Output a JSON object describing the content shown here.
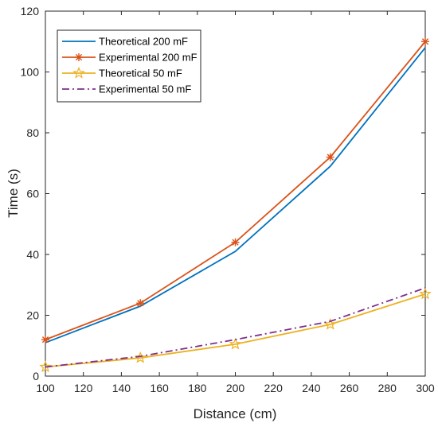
{
  "chart_data": {
    "type": "line",
    "xlabel": "Distance (cm)",
    "ylabel": "Time (s)",
    "xlim": [
      100,
      300
    ],
    "ylim": [
      0,
      120
    ],
    "x_ticks": [
      "100",
      "120",
      "140",
      "160",
      "180",
      "200",
      "220",
      "240",
      "260",
      "280",
      "300"
    ],
    "y_ticks": [
      "0",
      "20",
      "40",
      "60",
      "80",
      "100",
      "120"
    ],
    "x": [
      100,
      150,
      200,
      250,
      300
    ],
    "grid": false,
    "legend_position": "top-left",
    "series": [
      {
        "name": "Theoretical 200 mF",
        "values": [
          11,
          23,
          41,
          69,
          108
        ],
        "color": "#0072BD",
        "line_style": "solid",
        "marker": "none"
      },
      {
        "name": "Experimental 200 mF",
        "values": [
          12,
          24,
          44,
          72,
          110
        ],
        "color": "#D95319",
        "line_style": "solid",
        "marker": "asterisk"
      },
      {
        "name": "Theoretical 50 mF",
        "values": [
          3,
          6,
          10.5,
          17,
          27
        ],
        "color": "#EDB120",
        "line_style": "solid",
        "marker": "star"
      },
      {
        "name": "Experimental 50 mF",
        "values": [
          3,
          6.5,
          12,
          18,
          29
        ],
        "color": "#7E2F8E",
        "line_style": "dash-dot",
        "marker": "none"
      }
    ]
  }
}
